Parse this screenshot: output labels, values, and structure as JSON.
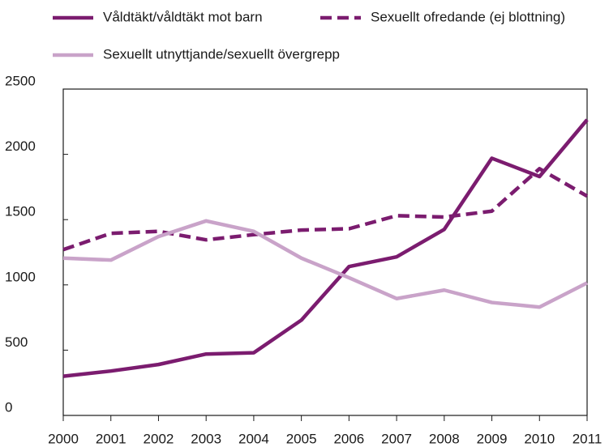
{
  "chart_data": {
    "type": "line",
    "x": [
      2000,
      2001,
      2002,
      2003,
      2004,
      2005,
      2006,
      2007,
      2008,
      2009,
      2010,
      2011
    ],
    "series": [
      {
        "name": "Våldtäkt/våldtäkt mot barn",
        "color": "#7b1c6f",
        "style": "solid",
        "values": [
          300,
          340,
          390,
          470,
          480,
          730,
          1140,
          1215,
          1425,
          1970,
          1830,
          2265
        ]
      },
      {
        "name": "Sexuellt ofredande (ej blottning)",
        "color": "#7b1c6f",
        "style": "dashed",
        "values": [
          1270,
          1395,
          1410,
          1345,
          1385,
          1420,
          1430,
          1530,
          1520,
          1565,
          1890,
          1680
        ]
      },
      {
        "name": "Sexuellt utnyttjande/sexuellt övergrepp",
        "color": "#c9a3c9",
        "style": "solid",
        "values": [
          1205,
          1190,
          1370,
          1490,
          1410,
          1205,
          1055,
          895,
          960,
          865,
          830,
          1015
        ]
      }
    ],
    "xlim": [
      2000,
      2011
    ],
    "xticks": [
      2000,
      2001,
      2002,
      2003,
      2004,
      2005,
      2006,
      2007,
      2008,
      2009,
      2010,
      2011
    ],
    "ylim": [
      0,
      2500
    ],
    "yticks": [
      0,
      500,
      1000,
      1500,
      2000,
      2500
    ],
    "legend": "top"
  }
}
